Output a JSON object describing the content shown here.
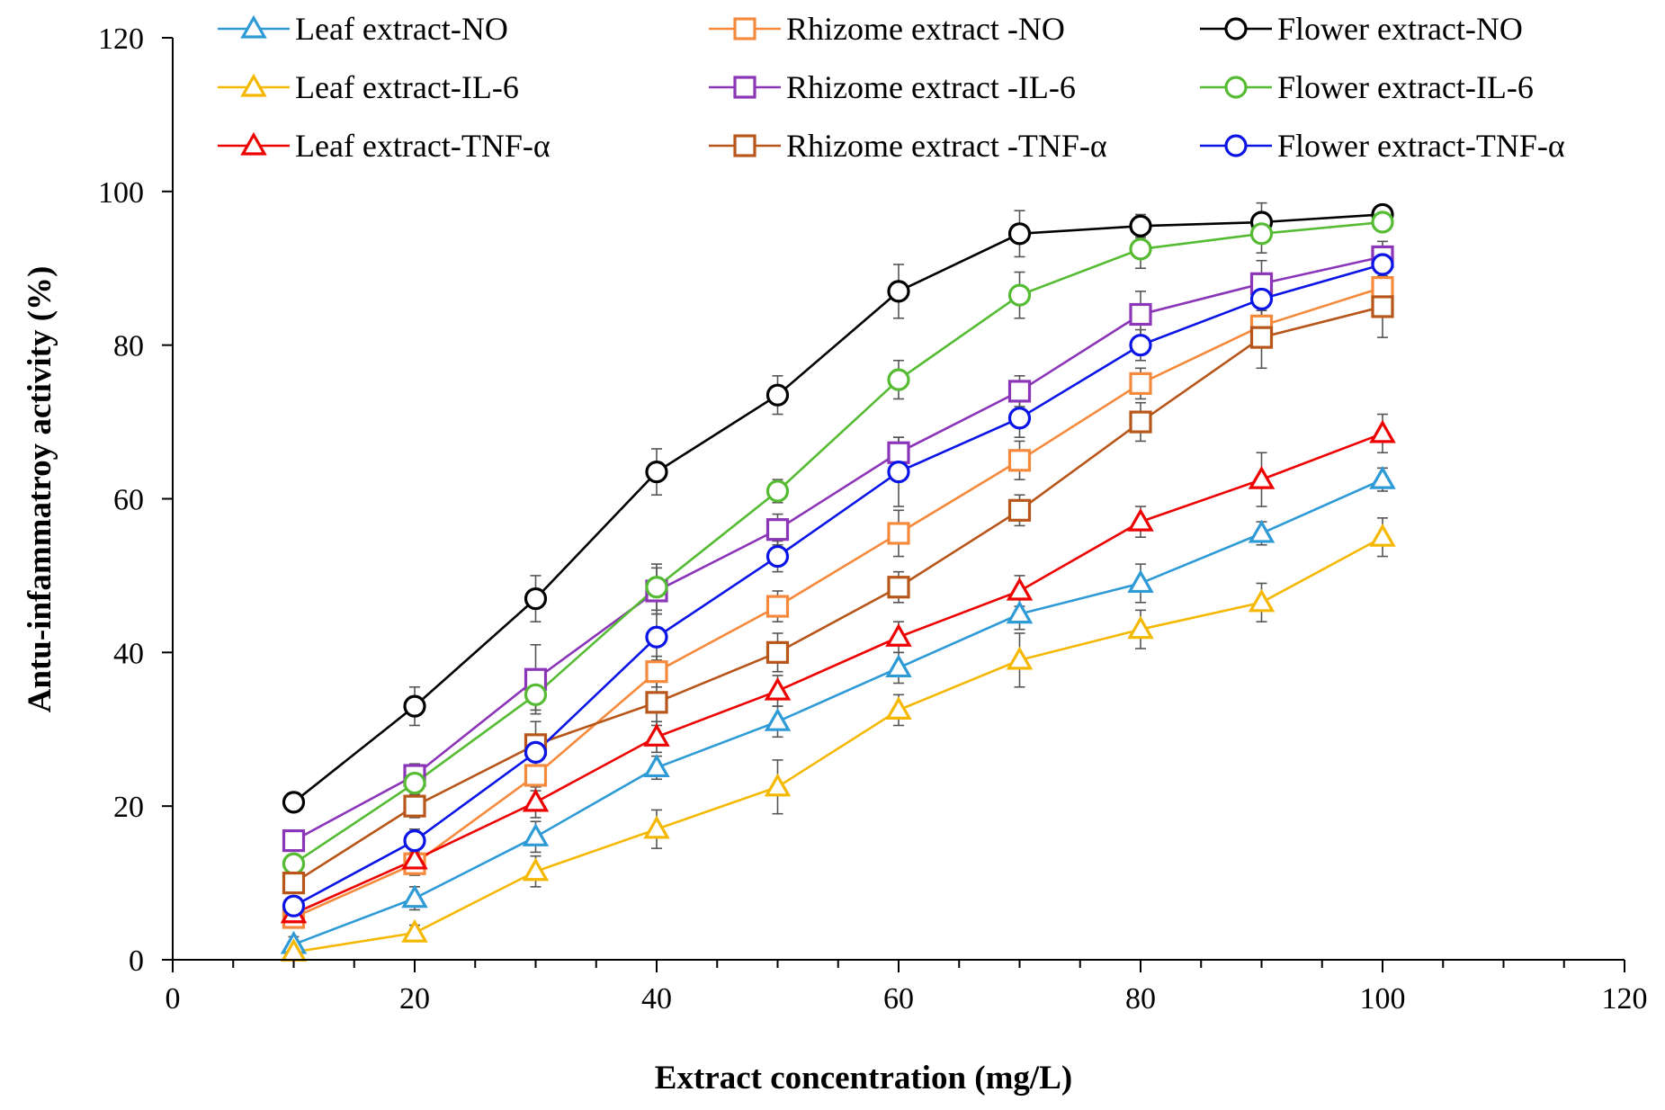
{
  "chart_data": {
    "type": "line",
    "title": "",
    "xlabel": "Extract concentration (mg/L)",
    "ylabel": "Antu-infammatroy activity (%)",
    "xlim": [
      0,
      120
    ],
    "ylim": [
      0,
      120
    ],
    "x_ticks": [
      0,
      20,
      40,
      60,
      80,
      100,
      120
    ],
    "y_ticks": [
      0,
      20,
      40,
      60,
      80,
      100,
      120
    ],
    "x_minor_step": 5,
    "grid": false,
    "legend_position": "top",
    "x": [
      10,
      20,
      30,
      40,
      50,
      60,
      70,
      80,
      90,
      100
    ],
    "series": [
      {
        "name": "Leaf extract-NO",
        "marker": "triangle",
        "color": "#2e9bd6",
        "values": [
          2,
          8,
          16,
          25,
          31,
          38,
          45,
          49,
          55.5,
          62.5
        ],
        "errors": [
          1,
          1.5,
          2,
          1.5,
          2,
          2,
          2,
          2.5,
          1.5,
          1.5
        ]
      },
      {
        "name": "Rhizome extract -NO",
        "marker": "square",
        "color": "#f58a3c",
        "values": [
          5.5,
          12.5,
          24,
          37.5,
          46,
          55.5,
          65,
          75,
          82.5,
          87.5
        ],
        "errors": [
          1,
          1.5,
          2,
          2,
          2,
          3,
          2.5,
          2,
          2,
          2
        ]
      },
      {
        "name": "Flower extract-NO",
        "marker": "circle",
        "color": "#000000",
        "values": [
          20.5,
          33,
          47,
          63.5,
          73.5,
          87,
          94.5,
          95.5,
          96,
          97
        ],
        "errors": [
          1,
          2.5,
          3,
          3,
          2.5,
          3.5,
          3,
          1.5,
          2.5,
          1
        ]
      },
      {
        "name": "Leaf extract-IL-6",
        "marker": "triangle",
        "color": "#f5b800",
        "values": [
          1,
          3.5,
          11.5,
          17,
          22.5,
          32.5,
          39,
          43,
          46.5,
          55
        ],
        "errors": [
          0.5,
          1,
          2,
          2.5,
          3.5,
          2,
          3.5,
          2.5,
          2.5,
          2.5
        ]
      },
      {
        "name": "Rhizome extract -IL-6",
        "marker": "square",
        "color": "#8b35b8",
        "values": [
          15.5,
          24,
          36.5,
          48,
          56,
          66,
          74,
          84,
          88,
          91.5
        ],
        "errors": [
          1,
          1.5,
          4.5,
          3,
          2,
          2,
          2,
          3,
          3,
          2
        ]
      },
      {
        "name": "Flower extract-IL-6",
        "marker": "circle",
        "color": "#55bb33",
        "values": [
          12.5,
          23,
          34.5,
          48.5,
          61,
          75.5,
          86.5,
          92.5,
          94.5,
          96
        ],
        "errors": [
          1,
          1.5,
          2,
          3,
          1.5,
          2.5,
          3,
          2.5,
          2.5,
          1
        ]
      },
      {
        "name": "Leaf extract-TNF-α",
        "marker": "triangle",
        "color": "#ee0000",
        "values": [
          6,
          13,
          20.5,
          29,
          35,
          42,
          48,
          57,
          62.5,
          68.5
        ],
        "errors": [
          1,
          1.5,
          2,
          2,
          2,
          2,
          2,
          2,
          3.5,
          2.5
        ]
      },
      {
        "name": "Rhizome extract -TNF-α",
        "marker": "square",
        "color": "#b8561a",
        "values": [
          10,
          20,
          28,
          33.5,
          40,
          48.5,
          58.5,
          70,
          81,
          85
        ],
        "errors": [
          1,
          1.5,
          3,
          3,
          2.5,
          2,
          2,
          2.5,
          4,
          4
        ]
      },
      {
        "name": "Flower extract-TNF-α",
        "marker": "circle",
        "color": "#0a14e6",
        "values": [
          7,
          15.5,
          27,
          42,
          52.5,
          63.5,
          70.5,
          80,
          86,
          90.5
        ],
        "errors": [
          1,
          1.5,
          2,
          3,
          2,
          4.5,
          2.5,
          2,
          3,
          2
        ]
      }
    ]
  }
}
